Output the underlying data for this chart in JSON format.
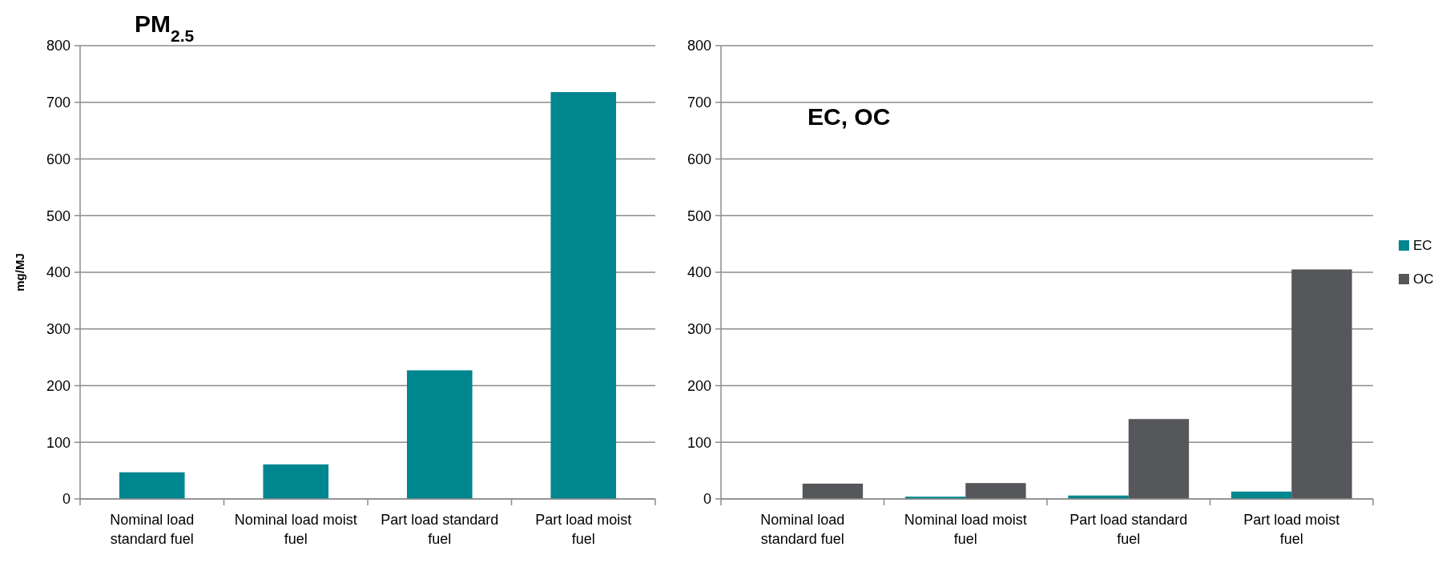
{
  "chart_data": [
    {
      "type": "bar",
      "title": "PM$_{2.5}$",
      "ylabel": "mg/MJ",
      "categories": [
        "Nominal load standard fuel",
        "Nominal load moist fuel",
        "Part load standard fuel",
        "Part load moist fuel"
      ],
      "series": [
        {
          "color": "#00868f",
          "values": [
            47,
            61,
            227,
            718
          ]
        }
      ],
      "ylim": [
        0,
        800
      ],
      "yticks": [
        0,
        100,
        200,
        300,
        400,
        500,
        600,
        700,
        800
      ],
      "grid": "y",
      "legend": false
    },
    {
      "type": "bar",
      "title": "EC, OC",
      "categories": [
        "Nominal load standard fuel",
        "Nominal load moist fuel",
        "Part load standard fuel",
        "Part load moist fuel"
      ],
      "series": [
        {
          "name": "EC",
          "color": "#00868f",
          "values": [
            0,
            4,
            6,
            13
          ]
        },
        {
          "name": "OC",
          "color": "#56575b",
          "values": [
            27,
            28,
            141,
            405
          ]
        }
      ],
      "ylim": [
        0,
        800
      ],
      "yticks": [
        0,
        100,
        200,
        300,
        400,
        500,
        600,
        700,
        800
      ],
      "grid": "y",
      "legend": "right"
    }
  ]
}
